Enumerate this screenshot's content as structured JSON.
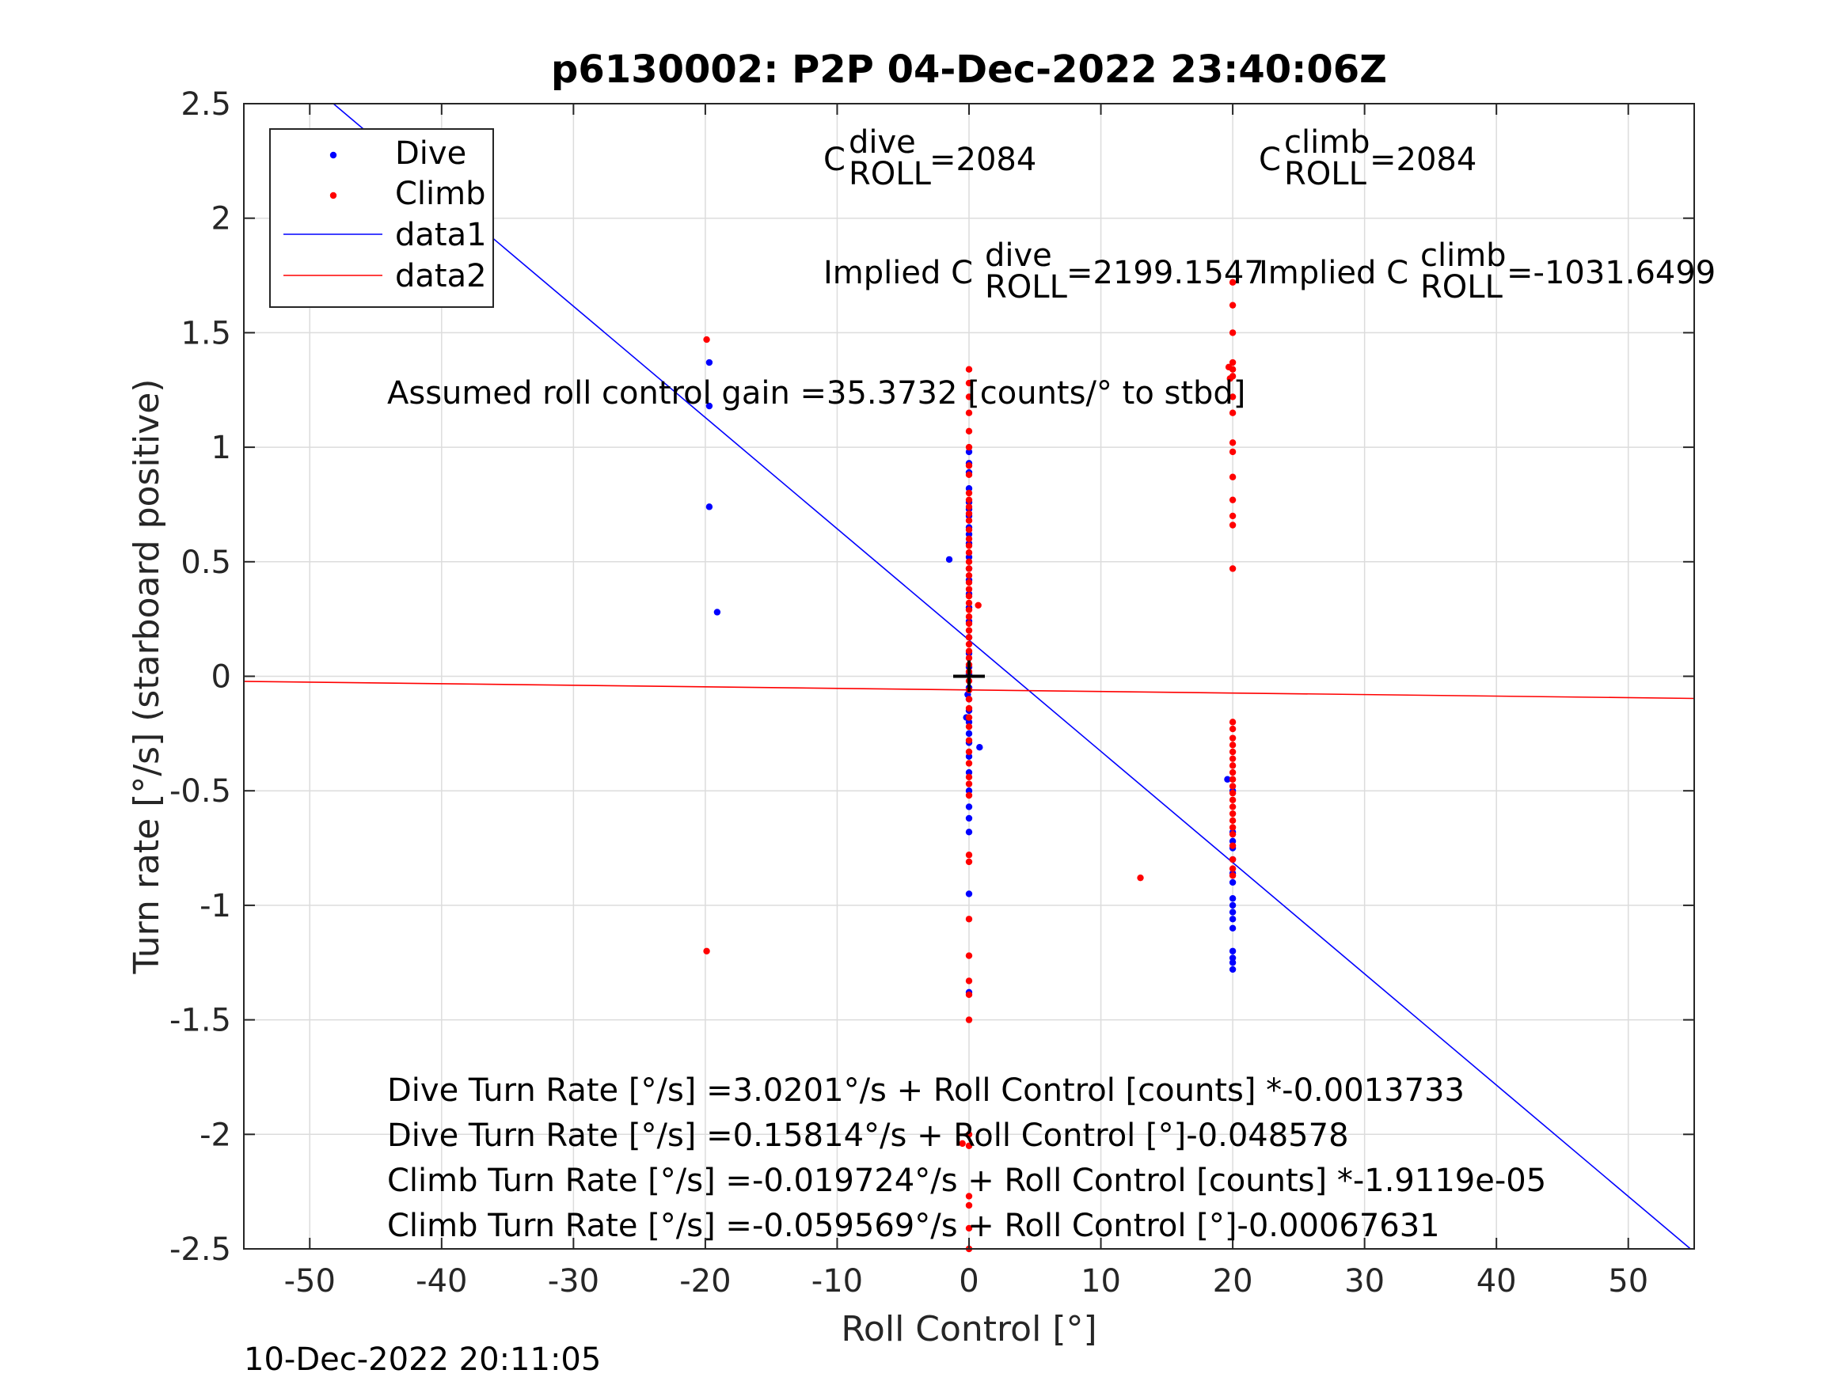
{
  "chart_data": {
    "type": "scatter",
    "title": "p6130002: P2P 04-Dec-2022 23:40:06Z",
    "xlabel": "Roll Control [°]",
    "ylabel": "Turn rate [°/s] (starboard positive)",
    "xlim": [
      -55,
      55
    ],
    "ylim": [
      -2.5,
      2.5
    ],
    "xticks": [
      -50,
      -40,
      -30,
      -20,
      -10,
      0,
      10,
      20,
      30,
      40,
      50
    ],
    "yticks": [
      -2.5,
      -2,
      -1.5,
      -1,
      -0.5,
      0,
      0.5,
      1,
      1.5,
      2,
      2.5
    ],
    "xtick_labels": [
      "-50",
      "-40",
      "-30",
      "-20",
      "-10",
      "0",
      "10",
      "20",
      "30",
      "40",
      "50"
    ],
    "ytick_labels": [
      "-2.5",
      "-2",
      "-1.5",
      "-1",
      "-0.5",
      "0",
      "0.5",
      "1",
      "1.5",
      "2",
      "2.5"
    ],
    "grid": true,
    "legend_position": "top-left",
    "series": [
      {
        "name": "Dive",
        "kind": "points",
        "color": "#0000ff",
        "points": [
          [
            -19.7,
            1.37
          ],
          [
            -19.7,
            1.18
          ],
          [
            -19.7,
            0.74
          ],
          [
            -19.1,
            0.28
          ],
          [
            -1.5,
            0.51
          ],
          [
            0,
            0.98
          ],
          [
            0,
            0.93
          ],
          [
            0,
            0.89
          ],
          [
            0,
            0.82
          ],
          [
            0,
            0.76
          ],
          [
            0,
            0.73
          ],
          [
            0,
            0.7
          ],
          [
            0,
            0.65
          ],
          [
            0,
            0.62
          ],
          [
            0,
            0.58
          ],
          [
            0,
            0.52
          ],
          [
            0,
            0.47
          ],
          [
            0,
            0.42
          ],
          [
            0,
            0.36
          ],
          [
            0,
            0.3
          ],
          [
            0,
            0.24
          ],
          [
            0,
            0.17
          ],
          [
            0,
            0.1
          ],
          [
            0,
            0.04
          ],
          [
            0,
            0.01
          ],
          [
            0,
            -0.05
          ],
          [
            0,
            -0.1
          ],
          [
            0,
            -0.15
          ],
          [
            0,
            -0.2
          ],
          [
            0,
            -0.25
          ],
          [
            0,
            -0.29
          ],
          [
            0,
            -0.35
          ],
          [
            0,
            -0.42
          ],
          [
            0,
            -0.5
          ],
          [
            0,
            -0.57
          ],
          [
            0,
            -0.62
          ],
          [
            0,
            -0.68
          ],
          [
            0,
            -0.95
          ],
          [
            0,
            -1.38
          ],
          [
            0.8,
            -0.31
          ],
          [
            -0.1,
            -0.08
          ],
          [
            -0.2,
            -0.18
          ],
          [
            19.6,
            -0.45
          ],
          [
            20,
            -0.5
          ],
          [
            20,
            -0.68
          ],
          [
            20,
            -0.72
          ],
          [
            20,
            -0.75
          ],
          [
            20,
            -0.8
          ],
          [
            20,
            -0.86
          ],
          [
            20,
            -0.9
          ],
          [
            20,
            -0.97
          ],
          [
            20,
            -1.0
          ],
          [
            20,
            -1.03
          ],
          [
            20,
            -1.06
          ],
          [
            20,
            -1.1
          ],
          [
            20,
            -1.2
          ],
          [
            20,
            -1.23
          ],
          [
            20,
            -1.25
          ],
          [
            20,
            -1.28
          ]
        ]
      },
      {
        "name": "Climb",
        "kind": "points",
        "color": "#ff0000",
        "points": [
          [
            -19.9,
            1.47
          ],
          [
            -19.9,
            -1.2
          ],
          [
            0,
            1.34
          ],
          [
            0,
            1.28
          ],
          [
            0,
            1.22
          ],
          [
            0,
            1.15
          ],
          [
            0,
            1.07
          ],
          [
            0,
            1.0
          ],
          [
            0,
            0.92
          ],
          [
            0,
            0.88
          ],
          [
            0,
            0.8
          ],
          [
            0,
            0.77
          ],
          [
            0,
            0.74
          ],
          [
            0,
            0.71
          ],
          [
            0,
            0.68
          ],
          [
            0,
            0.64
          ],
          [
            0,
            0.6
          ],
          [
            0,
            0.57
          ],
          [
            0,
            0.54
          ],
          [
            0,
            0.5
          ],
          [
            0,
            0.47
          ],
          [
            0,
            0.44
          ],
          [
            0,
            0.41
          ],
          [
            0,
            0.38
          ],
          [
            0,
            0.35
          ],
          [
            0,
            0.32
          ],
          [
            0,
            0.29
          ],
          [
            0,
            0.26
          ],
          [
            0,
            0.23
          ],
          [
            0,
            0.2
          ],
          [
            0,
            0.17
          ],
          [
            0,
            0.14
          ],
          [
            0,
            0.11
          ],
          [
            0,
            0.08
          ],
          [
            0,
            0.05
          ],
          [
            0,
            0.02
          ],
          [
            0,
            -0.02
          ],
          [
            0,
            -0.06
          ],
          [
            0,
            -0.1
          ],
          [
            0,
            -0.14
          ],
          [
            0,
            -0.18
          ],
          [
            0,
            -0.22
          ],
          [
            0,
            -0.28
          ],
          [
            0,
            -0.33
          ],
          [
            0,
            -0.38
          ],
          [
            0,
            -0.44
          ],
          [
            0,
            -0.47
          ],
          [
            0,
            -0.52
          ],
          [
            0,
            -0.78
          ],
          [
            0,
            -0.81
          ],
          [
            0,
            -1.06
          ],
          [
            0,
            -1.22
          ],
          [
            0,
            -1.33
          ],
          [
            0,
            -1.39
          ],
          [
            0,
            -1.5
          ],
          [
            0,
            -2.0
          ],
          [
            0,
            -2.05
          ],
          [
            0,
            -2.27
          ],
          [
            0,
            -2.31
          ],
          [
            0,
            -2.41
          ],
          [
            0,
            -2.5
          ],
          [
            0.7,
            0.31
          ],
          [
            -0.5,
            -2.04
          ],
          [
            13,
            -0.88
          ],
          [
            20,
            1.72
          ],
          [
            20,
            1.62
          ],
          [
            20,
            1.5
          ],
          [
            20,
            1.37
          ],
          [
            20,
            1.34
          ],
          [
            20,
            1.31
          ],
          [
            20,
            1.22
          ],
          [
            20,
            1.15
          ],
          [
            20,
            1.02
          ],
          [
            20,
            0.98
          ],
          [
            20,
            0.87
          ],
          [
            20,
            0.77
          ],
          [
            20,
            0.7
          ],
          [
            20,
            0.66
          ],
          [
            20,
            0.47
          ],
          [
            19.7,
            1.35
          ],
          [
            19.8,
            1.3
          ],
          [
            20,
            -0.2
          ],
          [
            20,
            -0.23
          ],
          [
            20,
            -0.27
          ],
          [
            20,
            -0.3
          ],
          [
            20,
            -0.33
          ],
          [
            20,
            -0.36
          ],
          [
            20,
            -0.39
          ],
          [
            20,
            -0.42
          ],
          [
            20,
            -0.45
          ],
          [
            20,
            -0.48
          ],
          [
            20,
            -0.51
          ],
          [
            20,
            -0.54
          ],
          [
            20,
            -0.57
          ],
          [
            20,
            -0.6
          ],
          [
            20,
            -0.63
          ],
          [
            20,
            -0.66
          ],
          [
            20,
            -0.69
          ],
          [
            20,
            -0.74
          ],
          [
            20,
            -0.8
          ],
          [
            20,
            -0.84
          ],
          [
            20,
            -0.87
          ]
        ]
      },
      {
        "name": "data1",
        "kind": "line",
        "color": "#0000ff",
        "intercept": 0.15814,
        "slope": -0.048578
      },
      {
        "name": "data2",
        "kind": "line",
        "color": "#ff0000",
        "intercept": -0.059569,
        "slope": -0.00067631
      }
    ],
    "origin_marker": [
      0,
      0
    ],
    "annotations": {
      "c_dive": {
        "main": "C",
        "sup": "dive",
        "sub": "ROLL",
        "value": "=2084"
      },
      "c_climb": {
        "main": "C",
        "sup": "climb",
        "sub": "ROLL",
        "value": "=2084"
      },
      "implied_dive": {
        "prefix": "Implied C",
        "sup": "dive",
        "sub": "ROLL",
        "value": "=2199.1547"
      },
      "implied_climb": {
        "prefix": "Implied C",
        "sup": "climb",
        "sub": "ROLL",
        "value": "=-1031.6499"
      },
      "gain": "Assumed roll control gain =35.3732 [counts/° to stbd]",
      "fits": [
        "Dive Turn Rate [°/s] =3.0201°/s + Roll Control [counts] *-0.0013733",
        "Dive Turn Rate [°/s] =0.15814°/s + Roll Control [°]-0.048578",
        "Climb Turn Rate [°/s] =-0.019724°/s + Roll Control [counts] *-1.9119e-05",
        "Climb Turn Rate [°/s] =-0.059569°/s + Roll Control [°]-0.00067631"
      ]
    }
  },
  "timestamp": "10-Dec-2022 20:11:05"
}
